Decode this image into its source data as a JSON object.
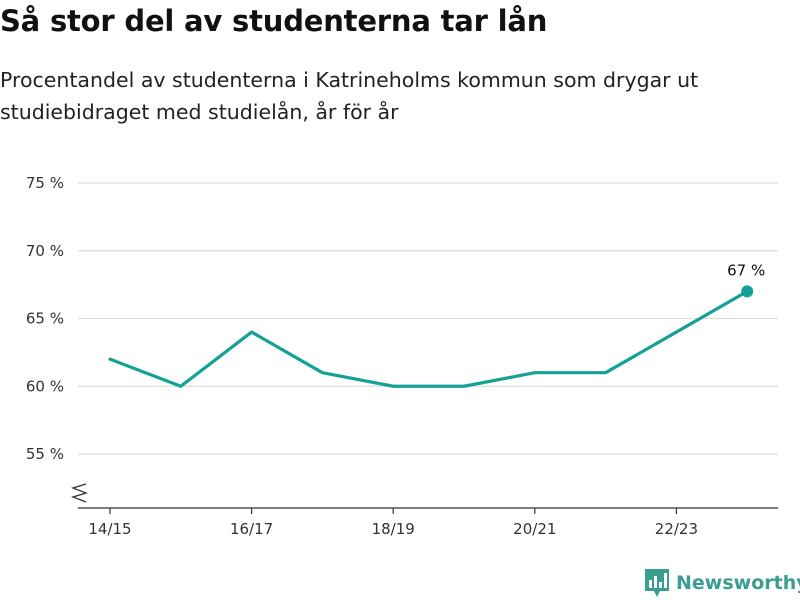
{
  "title": "Så stor del av studenterna tar lån",
  "subtitle": "Procentandel av studenterna i Katrineholms kommun som drygar ut studiebidraget med studielån, år för år",
  "brand": {
    "name": "Newsworthy",
    "icon": "newsworthy-logo-icon",
    "color": "#3a9e8f"
  },
  "chart_data": {
    "type": "line",
    "x": [
      "14/15",
      "15/16",
      "16/17",
      "17/18",
      "18/19",
      "19/20",
      "20/21",
      "21/22",
      "22/23",
      "23/24"
    ],
    "series": [
      {
        "values": [
          62,
          60,
          64,
          61,
          60,
          60,
          61,
          61,
          64,
          67
        ],
        "color": "#14a196"
      }
    ],
    "x_tick_labels": [
      "14/15",
      "16/17",
      "18/19",
      "20/21",
      "22/23"
    ],
    "y_ticks": [
      55,
      60,
      65,
      70,
      75
    ],
    "y_tick_labels": [
      "55 %",
      "60 %",
      "65 %",
      "70 %",
      "75 %"
    ],
    "ylim": [
      51,
      75
    ],
    "y_axis_break": true,
    "grid": true,
    "last_point_label": "67 %",
    "xlabel": "",
    "ylabel": ""
  }
}
